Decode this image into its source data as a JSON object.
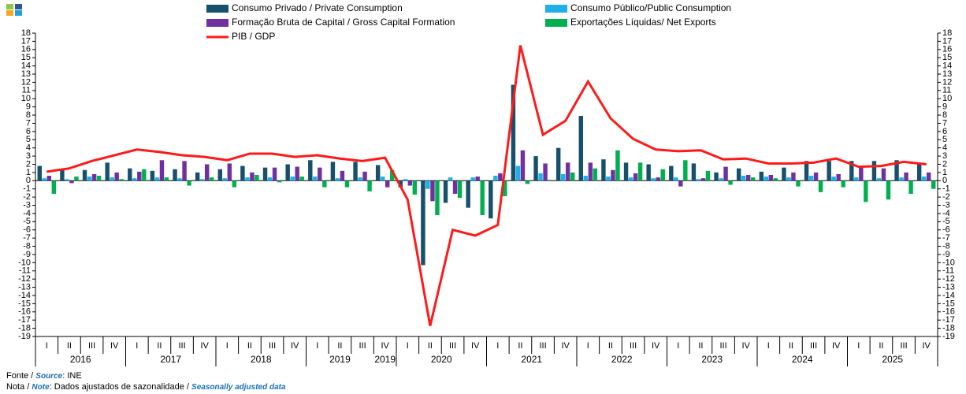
{
  "chart_data": {
    "type": "bar",
    "categories": [
      "I",
      "II",
      "III",
      "IV",
      "I",
      "II",
      "III",
      "IV",
      "I",
      "II",
      "III",
      "IV",
      "I",
      "II",
      "III",
      "IV",
      "I",
      "II",
      "III",
      "IV",
      "I",
      "II",
      "III",
      "IV",
      "I",
      "II",
      "III",
      "IV",
      "I",
      "II",
      "III",
      "IV",
      "I",
      "II",
      "III",
      "IV",
      "I",
      "II",
      "III",
      "IV"
    ],
    "years": [
      "2016",
      "2017",
      "2018",
      "2019",
      "2019",
      "2020",
      "2021",
      "2022",
      "2023",
      "2024",
      "2025"
    ],
    "series": [
      {
        "name": "Consumo Privado / Private Consumption",
        "type": "bar",
        "color": "#17506b",
        "values": [
          1.8,
          1.3,
          1.3,
          2.2,
          1.5,
          1.2,
          1.4,
          1.0,
          1.4,
          1.8,
          1.6,
          2.0,
          2.5,
          2.3,
          2.3,
          1.9,
          -0.8,
          -10.3,
          -2.7,
          -3.3,
          -4.6,
          11.7,
          3.0,
          4.0,
          7.9,
          2.6,
          2.2,
          2.0,
          1.8,
          2.1,
          1.0,
          1.5,
          1.1,
          1.6,
          2.4,
          2.4,
          2.4,
          2.4,
          2.5,
          2.0
        ]
      },
      {
        "name": "Consumo Público/Public Consumption",
        "type": "bar",
        "color": "#1fb0e8",
        "values": [
          0.3,
          0.2,
          0.5,
          0.4,
          0.3,
          0.4,
          0.3,
          0.2,
          0.3,
          0.4,
          0.4,
          0.5,
          0.5,
          0.3,
          0.4,
          0.5,
          0.2,
          -1.0,
          0.4,
          0.4,
          0.6,
          1.8,
          0.9,
          0.8,
          0.6,
          0.5,
          0.4,
          0.3,
          0.4,
          0.2,
          0.3,
          0.6,
          0.5,
          0.4,
          0.6,
          0.5,
          0.4,
          0.3,
          0.4,
          0.5
        ]
      },
      {
        "name": "Formação Bruta de Capital / Gross Capital Formation",
        "type": "bar",
        "color": "#7030a0",
        "values": [
          0.6,
          -0.3,
          0.8,
          1.0,
          1.1,
          2.5,
          2.4,
          2.0,
          2.1,
          1.0,
          1.6,
          1.7,
          1.6,
          1.2,
          1.1,
          -0.8,
          -0.6,
          -2.5,
          -1.6,
          0.5,
          0.9,
          3.7,
          2.1,
          2.2,
          2.2,
          1.3,
          0.9,
          0.4,
          -0.7,
          0.3,
          1.7,
          0.7,
          0.7,
          1.0,
          1.0,
          0.8,
          1.7,
          1.5,
          1.0,
          1.0
        ]
      },
      {
        "name": "Exportações Líquidas/ Net Exports",
        "type": "bar",
        "color": "#00b050",
        "values": [
          -1.6,
          0.5,
          0.6,
          0.2,
          1.4,
          0.4,
          -0.6,
          0.4,
          -0.8,
          0.7,
          -0.2,
          0.5,
          -0.8,
          -0.8,
          -1.3,
          1.3,
          -1.7,
          -4.2,
          -2.1,
          -4.2,
          -1.9,
          -0.4,
          0.1,
          1.0,
          1.5,
          3.7,
          2.2,
          1.4,
          2.5,
          1.2,
          -0.5,
          0.4,
          0.3,
          -0.7,
          -1.4,
          -0.8,
          -2.6,
          -2.3,
          -1.6,
          -1.0
        ]
      },
      {
        "name": "PIB / GDP",
        "type": "line",
        "color": "#ff1a1a",
        "values": [
          1.1,
          1.5,
          2.4,
          3.1,
          3.8,
          3.5,
          3.1,
          2.9,
          2.5,
          3.3,
          3.3,
          2.9,
          3.1,
          2.7,
          2.4,
          2.8,
          -2.3,
          -17.7,
          -6.0,
          -6.7,
          -5.4,
          16.5,
          5.6,
          7.3,
          12.1,
          7.6,
          5.1,
          3.8,
          3.6,
          3.7,
          2.6,
          2.7,
          2.1,
          2.1,
          2.2,
          2.7,
          1.7,
          1.8,
          2.3,
          2.0
        ]
      }
    ],
    "ylim": [
      -19,
      18
    ],
    "yticks": [
      -19,
      -18,
      -17,
      -16,
      -15,
      -14,
      -13,
      -12,
      -11,
      -10,
      -9,
      -8,
      -7,
      -6,
      -5,
      -4,
      -3,
      -2,
      -1,
      0,
      1,
      2,
      3,
      4,
      5,
      6,
      7,
      8,
      9,
      10,
      11,
      12,
      13,
      14,
      15,
      16,
      17,
      18
    ],
    "grid": false,
    "source": [
      "Fonte / ",
      "Source",
      ":  INE"
    ],
    "note": [
      "Nota / ",
      "Note",
      ": Dados ajustados de sazonalidade / ",
      "Seasonally adjusted data"
    ]
  }
}
